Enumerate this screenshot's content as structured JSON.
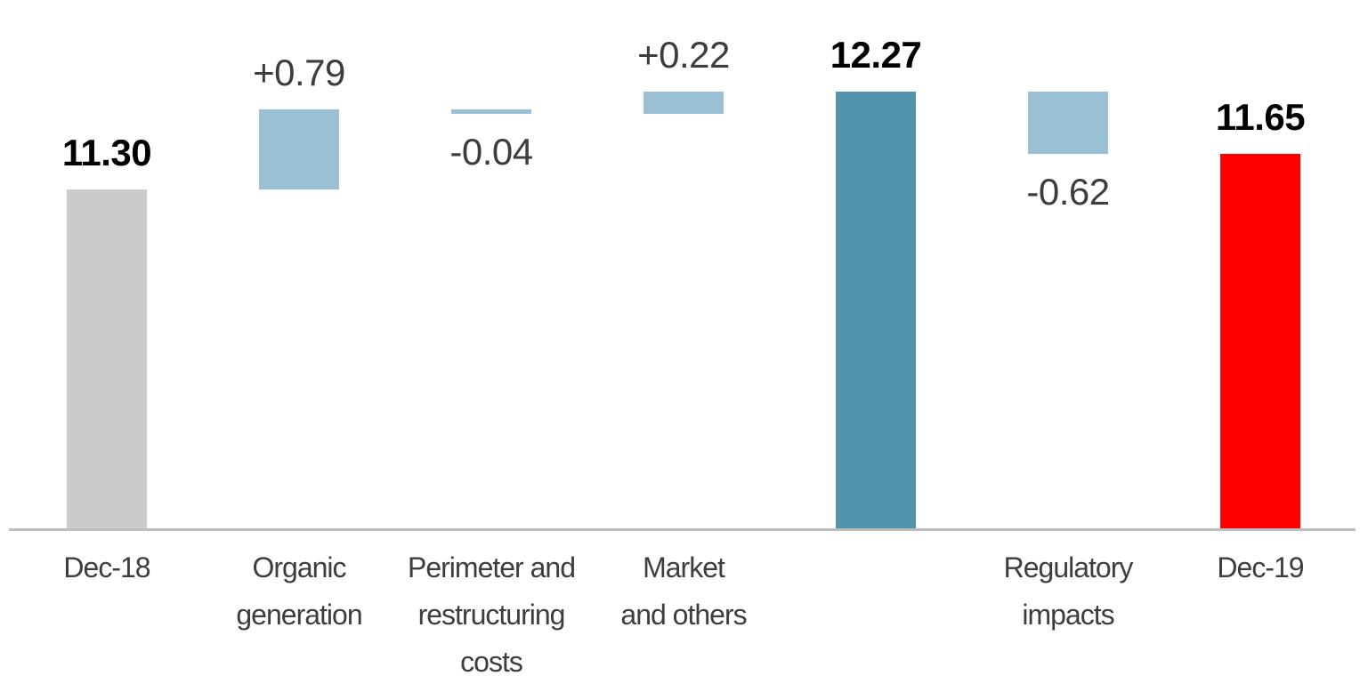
{
  "chart_data": {
    "type": "waterfall",
    "title": "",
    "legend": null,
    "gridlines": false,
    "background": "#ffffff",
    "axis": {
      "baseline_visible": true,
      "baseline_color": "#bdbdbd",
      "value_axis_visible": false,
      "visible_value_min": 7.95,
      "visible_value_max": 12.6
    },
    "text_colors": {
      "delta_label": "#3d3d3d",
      "total_label": "#000000",
      "category_label": "#3d3d3d"
    },
    "bars": [
      {
        "id": "dec-18",
        "category_lines": [
          "Dec-18"
        ],
        "value_label": "11.30",
        "value": 11.3,
        "start": 0,
        "end": 11.3,
        "role": "total",
        "color": "#cbcbcb",
        "value_label_position": "above",
        "value_label_style": "total"
      },
      {
        "id": "organic-generation",
        "category_lines": [
          "Organic",
          "generation"
        ],
        "value_label": "+0.79",
        "value": 0.79,
        "start": 11.3,
        "end": 12.09,
        "role": "increase",
        "color": "#9bc2d4",
        "value_label_position": "above",
        "value_label_style": "delta"
      },
      {
        "id": "perimeter-and-restructuring-costs",
        "category_lines": [
          "Perimeter and",
          "restructuring",
          "costs"
        ],
        "value_label": "-0.04",
        "value": -0.04,
        "start": 12.09,
        "end": 12.05,
        "role": "decrease",
        "color": "#9bc2d4",
        "value_label_position": "below",
        "value_label_style": "delta"
      },
      {
        "id": "market-and-others",
        "category_lines": [
          "Market",
          "and others"
        ],
        "value_label": "+0.22",
        "value": 0.22,
        "start": 12.05,
        "end": 12.27,
        "role": "increase",
        "color": "#9bc2d4",
        "value_label_position": "above",
        "value_label_style": "delta"
      },
      {
        "id": "subtotal",
        "category_lines": [],
        "value_label": "12.27",
        "value": 12.27,
        "start": 0,
        "end": 12.27,
        "role": "subtotal",
        "color": "#5394ad",
        "value_label_position": "above",
        "value_label_style": "total"
      },
      {
        "id": "regulatory-impacts",
        "category_lines": [
          "Regulatory",
          "impacts"
        ],
        "value_label": "-0.62",
        "value": -0.62,
        "start": 12.27,
        "end": 11.65,
        "role": "decrease",
        "color": "#9bc2d4",
        "value_label_position": "below",
        "value_label_style": "delta"
      },
      {
        "id": "dec-19",
        "category_lines": [
          "Dec-19"
        ],
        "value_label": "11.65",
        "value": 11.65,
        "start": 0,
        "end": 11.65,
        "role": "total",
        "color": "#ff0000",
        "value_label_position": "above",
        "value_label_style": "total"
      }
    ]
  }
}
